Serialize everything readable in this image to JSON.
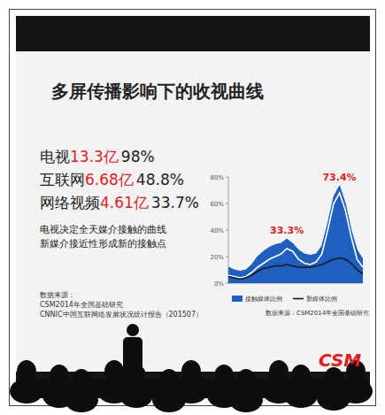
{
  "slide": {
    "title": "多屏传播影响下的收视曲线",
    "stats": [
      {
        "label": "电视",
        "count": "13.3亿",
        "share": "98%"
      },
      {
        "label": "互联网",
        "count": "6.68亿",
        "share": "48.8%"
      },
      {
        "label": "网络视频",
        "count": "4.61亿",
        "share": "33.7%"
      }
    ],
    "notes": [
      "电视决定全天媒介接触的曲线",
      "新媒介接近性形成新的接触点"
    ],
    "sources": [
      "数据来源：",
      "CSM2014年全国基础研究",
      "CNNIC中国互联网络发展状况统计报告（201507）"
    ],
    "logo": "CSM"
  },
  "chart_data": {
    "type": "area",
    "categories": [
      null,
      null,
      null,
      null,
      null,
      null,
      null,
      null,
      null,
      null,
      null,
      null,
      null,
      null,
      null,
      null,
      null,
      null,
      null,
      null,
      null,
      null,
      null,
      null
    ],
    "series": [
      {
        "name": "接触媒体比例",
        "type": "area",
        "color": "#1f5fbf",
        "values": [
          12,
          10,
          9,
          10,
          14,
          20,
          24,
          27,
          29,
          30,
          33.3,
          30,
          25,
          22,
          21,
          22,
          28,
          45,
          65,
          73.4,
          60,
          40,
          25,
          18
        ]
      },
      {
        "type": "line",
        "color": "#ffffff",
        "values": [
          6,
          5,
          4,
          5,
          8,
          12,
          15,
          18,
          20,
          22,
          26,
          24,
          18,
          15,
          14,
          16,
          22,
          40,
          60,
          68,
          55,
          35,
          18,
          12
        ]
      },
      {
        "name": "新媒体比例",
        "type": "line",
        "color": "#1a1a1a",
        "values": [
          5,
          4,
          3,
          4,
          6,
          9,
          11,
          12,
          13,
          13,
          14,
          13,
          12,
          12,
          12,
          13,
          14,
          16,
          18,
          19,
          18,
          15,
          10,
          7
        ]
      }
    ],
    "ylim": [
      0,
      80
    ],
    "yticks": [
      {
        "value": 0,
        "label": "0%"
      },
      {
        "value": 20,
        "label": "20%"
      },
      {
        "value": 40,
        "label": "40%"
      },
      {
        "value": 60,
        "label": "60%"
      },
      {
        "value": 80,
        "label": "80%"
      }
    ],
    "grid": false,
    "tick_labels": "y",
    "legend": "bottom",
    "annotations": [
      {
        "text": "33.3%",
        "value": 33.3
      },
      {
        "text": "73.4%",
        "value": 73.4
      }
    ],
    "source": "数据来源：CSM2014年全国基础研究"
  }
}
